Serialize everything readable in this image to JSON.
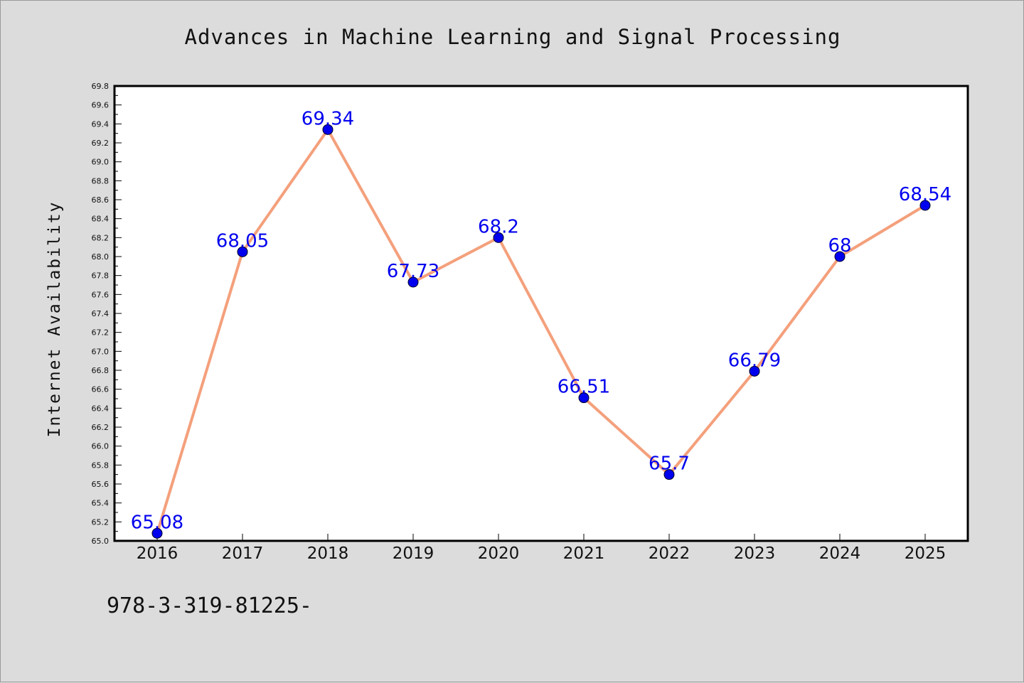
{
  "chart_data": {
    "type": "line",
    "title": "Advances in Machine Learning and Signal Processing",
    "xlabel": "",
    "ylabel": "Internet Availability",
    "categories": [
      "2016",
      "2017",
      "2018",
      "2019",
      "2020",
      "2021",
      "2022",
      "2023",
      "2024",
      "2025"
    ],
    "series": [
      {
        "values": [
          65.08,
          68.05,
          69.34,
          67.73,
          68.2,
          66.51,
          65.7,
          66.79,
          68,
          68.54
        ],
        "data_labels": [
          "65.08",
          "68.05",
          "69.34",
          "67.73",
          "68.2",
          "66.51",
          "65.7",
          "66.79",
          "68",
          "68.54"
        ],
        "line_color": "#f4a07c",
        "marker_color": "#0000ee"
      }
    ],
    "ylim": [
      65.0,
      69.8
    ],
    "yticks": [
      "65.0",
      "65.2",
      "65.4",
      "65.6",
      "65.8",
      "66.0",
      "66.2",
      "66.4",
      "66.6",
      "66.8",
      "67.0",
      "67.2",
      "67.4",
      "67.6",
      "67.8",
      "68.0",
      "68.2",
      "68.4",
      "68.6",
      "68.8",
      "69.0",
      "69.2",
      "69.4",
      "69.6",
      "69.8"
    ],
    "grid": false,
    "legend": "none",
    "colors": {
      "background": "#dcdcdc",
      "plot_background": "#ffffff",
      "label_color": "#0000ee"
    }
  },
  "footnote": "978-3-319-81225-"
}
